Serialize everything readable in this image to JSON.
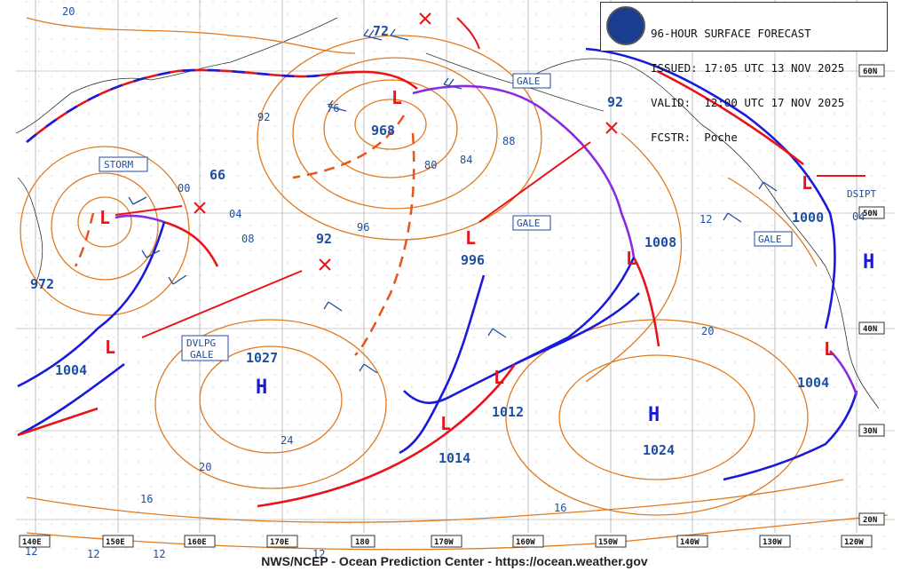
{
  "header": {
    "title": "96-HOUR SURFACE FORECAST",
    "issued_label": "ISSUED:",
    "issued": "17:05 UTC 13 NOV 2025",
    "valid_label": "VALID:",
    "valid": "12:00 UTC 17 NOV 2025",
    "forecaster_label": "FCSTR:",
    "forecaster": "Poche",
    "logo_text": "NOAA"
  },
  "footer": "NWS/NCEP - Ocean Prediction Center - https://ocean.weather.gov",
  "colors": {
    "isobar": "#e07a1f",
    "warm_front": "#e8141a",
    "cold_front": "#1a1adb",
    "occluded_front": "#8a2be2",
    "label_blue": "#1f4fa0",
    "grid": "#999999"
  },
  "lat_labels": [
    "60N",
    "50N",
    "40N",
    "30N",
    "20N"
  ],
  "lon_labels": [
    "140E",
    "150E",
    "160E",
    "170E",
    "180",
    "170W",
    "160W",
    "150W",
    "140W",
    "130W",
    "120W"
  ],
  "pressure_centers": [
    {
      "kind": "L",
      "value": "972"
    },
    {
      "kind": "L",
      "value": "968"
    },
    {
      "kind": "L",
      "value": "996"
    },
    {
      "kind": "L",
      "value": "1008"
    },
    {
      "kind": "L",
      "value": "1000"
    },
    {
      "kind": "L",
      "value": "1004"
    },
    {
      "kind": "L",
      "value": "1012"
    },
    {
      "kind": "L",
      "value": "1014"
    },
    {
      "kind": "L",
      "value": "1004"
    },
    {
      "kind": "H",
      "value": "1027"
    },
    {
      "kind": "H",
      "value": "1024"
    },
    {
      "kind": "H",
      "value": ""
    }
  ],
  "point_values": [
    "66",
    "92",
    "72",
    "92"
  ],
  "warnings": [
    "STORM",
    "GALE",
    "GALE",
    "GALE",
    "DVLPG\nGALE",
    "DSIPT"
  ],
  "isobar_labels": [
    "20",
    "92",
    "76",
    "80",
    "84",
    "88",
    "00",
    "04",
    "08",
    "96",
    "12",
    "20",
    "24",
    "20",
    "16",
    "16",
    "12",
    "12",
    "12",
    "12",
    "04"
  ]
}
